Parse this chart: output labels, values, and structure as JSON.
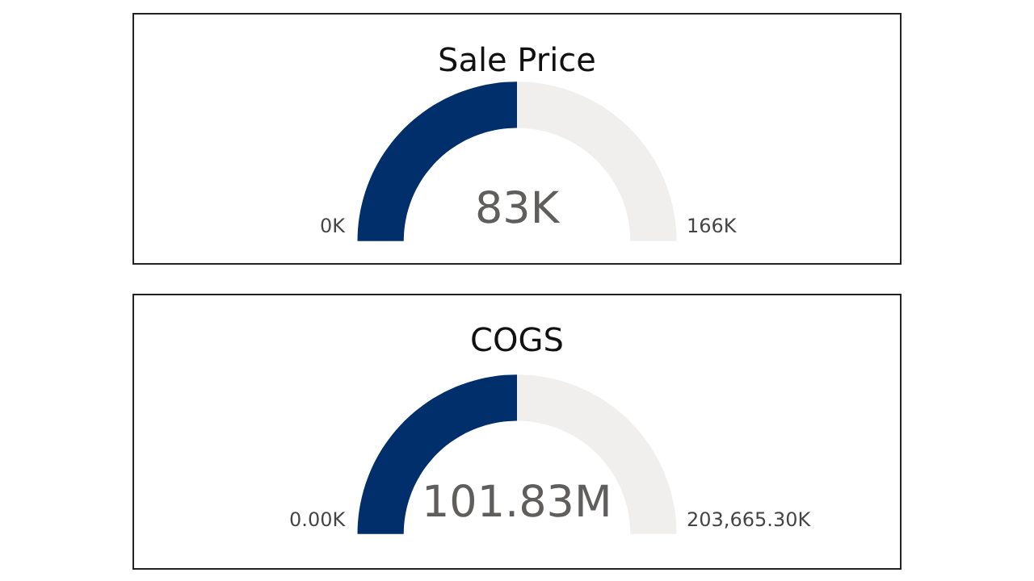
{
  "chart_data": [
    {
      "type": "donut",
      "title": "Sale Price",
      "categories": [
        null,
        null
      ],
      "values": [
        50,
        50
      ],
      "colors": [
        "#002f6c",
        "#f0efed"
      ],
      "annotations": [
        "83K",
        "0K",
        "166K"
      ]
    },
    {
      "type": "donut",
      "title": "COGS",
      "categories": [
        null,
        null
      ],
      "values": [
        50,
        50
      ],
      "colors": [
        "#002f6c",
        "#f0efed"
      ],
      "annotations": [
        "101.83M",
        "0.00K",
        "203,665.30K"
      ]
    }
  ]
}
